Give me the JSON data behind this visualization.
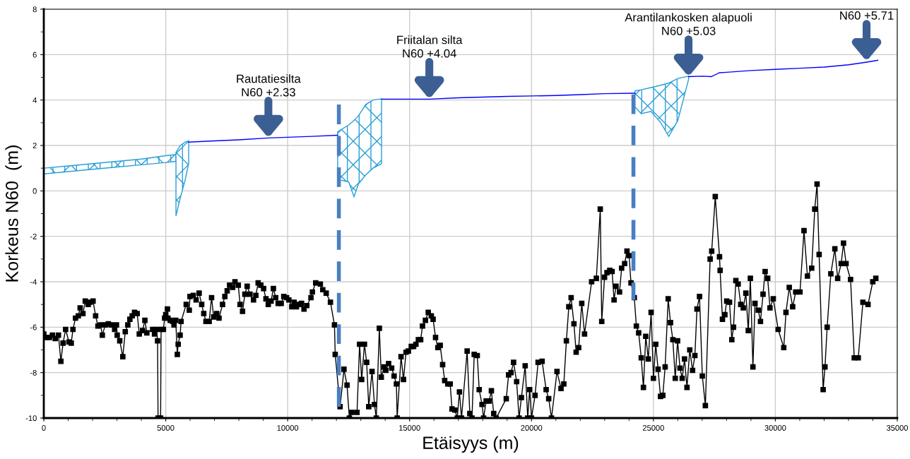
{
  "chart_data": {
    "type": "line",
    "xlabel": "Etäisyys (m)",
    "ylabel": "Korkeus N60  (m)",
    "xlim": [
      0,
      35000
    ],
    "xticks": [
      0,
      5000,
      10000,
      15000,
      20000,
      25000,
      30000,
      35000
    ],
    "ylim": [
      -10,
      8
    ],
    "yticks": [
      -10,
      -8,
      -6,
      -4,
      -2,
      0,
      2,
      4,
      6,
      8
    ],
    "grid": true,
    "series": [
      {
        "color": "#000000",
        "marker": "square",
        "line_style": "solid",
        "x": [
          0,
          115,
          230,
          355,
          470,
          600,
          700,
          790,
          895,
          1030,
          1125,
          1195,
          1300,
          1415,
          1490,
          1605,
          1700,
          1820,
          1895,
          2020,
          2125,
          2220,
          2330,
          2400,
          2520,
          2645,
          2760,
          2905,
          2980,
          3010,
          3115,
          3240,
          3340,
          3445,
          3530,
          3625,
          3720,
          3830,
          3915,
          4050,
          4145,
          4225,
          4465,
          4540,
          4625,
          4665,
          4685,
          4790,
          4810,
          4905,
          4955,
          5000,
          5070,
          5090,
          5185,
          5290,
          5340,
          5410,
          5475,
          5510,
          5590,
          5630,
          5840,
          5965,
          5995,
          6130,
          6245,
          6370,
          6475,
          6560,
          6650,
          6780,
          6880,
          6965,
          7090,
          7185,
          7330,
          7425,
          7520,
          7620,
          7745,
          7840,
          7975,
          8050,
          8150,
          8245,
          8340,
          8455,
          8600,
          8695,
          8790,
          8900,
          9015,
          9110,
          9205,
          9320,
          9415,
          9510,
          9610,
          9735,
          9840,
          9955,
          10050,
          10170,
          10265,
          10360,
          10475,
          10570,
          10670,
          10785,
          10955,
          11015,
          11150,
          11340,
          11440,
          11580,
          11755,
          11920,
          11950,
          12150,
          12310,
          12435,
          12530,
          12630,
          12845,
          12950,
          13035,
          13150,
          13240,
          13325,
          13460,
          13560,
          13635,
          13760,
          13840,
          13955,
          14025,
          14140,
          14265,
          14365,
          14460,
          14490,
          14650,
          14750,
          14855,
          14950,
          15070,
          15165,
          15260,
          15360,
          15455,
          15530,
          15650,
          15765,
          15890,
          15965,
          16065,
          16160,
          16255,
          16355,
          16440,
          16565,
          16665,
          16740,
          16860,
          16955,
          17045,
          17130,
          17360,
          17470,
          17560,
          17650,
          17775,
          17855,
          17970,
          18035,
          18140,
          18260,
          18355,
          18450,
          18550,
          18965,
          19060,
          19160,
          19265,
          19390,
          19490,
          19585,
          19740,
          19845,
          19925,
          20000,
          20145,
          20270,
          20435,
          20600,
          20705,
          20820,
          21045,
          21210,
          21325,
          21430,
          21530,
          21625,
          21740,
          21830,
          21935,
          22060,
          22175,
          22465,
          22660,
          22820,
          22880,
          22995,
          23095,
          23210,
          23305,
          23385,
          23465,
          23610,
          23695,
          23820,
          23915,
          24000,
          24080,
          24215,
          24300,
          24395,
          24500,
          24590,
          24685,
          24790,
          24905,
          25000,
          25095,
          25190,
          25290,
          25385,
          25480,
          25605,
          25700,
          25795,
          25895,
          25990,
          26090,
          26180,
          26275,
          26375,
          26490,
          26605,
          26700,
          26785,
          26890,
          27005,
          27130,
          27325,
          27390,
          27535,
          27710,
          27735,
          27830,
          27930,
          28005,
          28120,
          28215,
          28285,
          28380,
          28475,
          28580,
          28685,
          28790,
          28890,
          28975,
          29080,
          29165,
          29300,
          29390,
          29495,
          29580,
          29685,
          29780,
          29915,
          30115,
          30345,
          30435,
          30570,
          30710,
          30835,
          31010,
          31175,
          31315,
          31490,
          31615,
          31710,
          31795,
          31960,
          32035,
          32125,
          32275,
          32440,
          32555,
          32700,
          32795,
          32900,
          33085,
          33235,
          33400,
          33590,
          33800,
          33995,
          34120
        ],
        "values": [
          -6.3,
          -6.45,
          -6.45,
          -6.35,
          -6.5,
          -6.35,
          -7.5,
          -6.7,
          -6.1,
          -6.65,
          -6.7,
          -6.1,
          -5.6,
          -5.5,
          -5.15,
          -5.4,
          -4.85,
          -5.0,
          -4.9,
          -4.85,
          -5.5,
          -5.95,
          -5.9,
          -6.35,
          -5.9,
          -5.85,
          -5.9,
          -6.1,
          -5.9,
          -6.35,
          -6.6,
          -7.3,
          -6.2,
          -5.9,
          -5.65,
          -5.5,
          -5.35,
          -5.4,
          -6.3,
          -6.15,
          -5.7,
          -6.25,
          -6.1,
          -6.3,
          -6.1,
          -6.6,
          -10,
          -10,
          -6.1,
          -6.1,
          -5.6,
          -5.45,
          -5.2,
          -5.6,
          -5.7,
          -5.75,
          -5.9,
          -5.7,
          -7.2,
          -6.75,
          -6.35,
          -5.75,
          -5.0,
          -5.25,
          -4.65,
          -4.6,
          -4.8,
          -4.5,
          -5.0,
          -5.4,
          -5.75,
          -5.75,
          -4.7,
          -5.55,
          -5.4,
          -5.6,
          -5.0,
          -4.65,
          -4.4,
          -4.15,
          -4.25,
          -4.0,
          -4.15,
          -5.0,
          -5.3,
          -4.55,
          -4.2,
          -4.55,
          -4.8,
          -4.6,
          -4.05,
          -4.15,
          -4.3,
          -4.75,
          -5.0,
          -4.85,
          -4.3,
          -4.7,
          -4.95,
          -4.95,
          -4.65,
          -4.7,
          -4.8,
          -5.1,
          -4.9,
          -5.1,
          -5.0,
          -4.95,
          -5.2,
          -5.05,
          -4.7,
          -4.45,
          -4.05,
          -4.1,
          -4.35,
          -4.5,
          -4.9,
          -5.9,
          -7.2,
          -9.5,
          -7.85,
          -8.55,
          -10,
          -9.75,
          -9.75,
          -6.75,
          -8.3,
          -6.75,
          -7.55,
          -9.5,
          -7.95,
          -9.4,
          -10,
          -6.05,
          -8.2,
          -7.75,
          -7.9,
          -7.6,
          -7.8,
          -8.15,
          -8.5,
          -10,
          -7.3,
          -8.3,
          -7.1,
          -7.05,
          -6.85,
          -6.85,
          -6.75,
          -6.55,
          -6.55,
          -5.95,
          -5.7,
          -5.35,
          -5.5,
          -5.65,
          -6.45,
          -6.9,
          -6.8,
          -7.65,
          -8.35,
          -8.5,
          -8.5,
          -9.6,
          -9.65,
          -10,
          -8.85,
          -10,
          -7.05,
          -9.8,
          -10,
          -7.2,
          -7.25,
          -8.75,
          -9.4,
          -10,
          -9.25,
          -9.25,
          -8.8,
          -9.8,
          -10,
          -9.15,
          -8.1,
          -8.0,
          -7.55,
          -8.4,
          -10,
          -9.1,
          -7.7,
          -10,
          -8.75,
          -10,
          -9.0,
          -7.55,
          -7.5,
          -8.75,
          -9.15,
          -10,
          -7.95,
          -8.7,
          -8.5,
          -6.6,
          -5.1,
          -4.7,
          -5.85,
          -7.1,
          -6.9,
          -4.95,
          -6.3,
          -4.0,
          -3.85,
          -0.8,
          -5.75,
          -3.8,
          -3.6,
          -3.5,
          -3.55,
          -4.8,
          -4.2,
          -4.45,
          -3.4,
          -3.2,
          -2.65,
          -2.85,
          -4.05,
          -4.7,
          -5.95,
          -6.25,
          -7.35,
          -8.65,
          -6.4,
          -7.4,
          -5.35,
          -8.25,
          -6.75,
          -7.85,
          -9.05,
          -9.0,
          -7.75,
          -4.75,
          -5.8,
          -6.55,
          -8.25,
          -6.6,
          -7.8,
          -8.25,
          -7.4,
          -8.65,
          -7.0,
          -7.9,
          -7.25,
          -5.2,
          -4.65,
          -8.15,
          -9.45,
          -3.0,
          -2.65,
          -0.25,
          -2.9,
          -3.5,
          -5.65,
          -5.45,
          -4.85,
          -4.9,
          -6.55,
          -6.0,
          -3.95,
          -4.1,
          -5.0,
          -5.15,
          -4.5,
          -6.15,
          -3.85,
          -7.75,
          -4.95,
          -5.25,
          -5.75,
          -4.55,
          -3.55,
          -3.85,
          -5.15,
          -4.75,
          -6.1,
          -6.9,
          -5.35,
          -4.25,
          -5.1,
          -4.45,
          -4.45,
          -1.75,
          -3.75,
          -3.4,
          -0.8,
          0.3,
          -2.8,
          -8.75,
          -7.75,
          -6.0,
          -3.65,
          -2.55,
          -3.85,
          -3.2,
          -2.3,
          -3.2,
          -3.9,
          -7.35,
          -7.35,
          -4.9,
          -5.0,
          -4.0,
          -3.85
        ]
      },
      {
        "color": "#0000ff",
        "marker": "none",
        "line_style": "solid",
        "x": [
          5940,
          7000,
          8000,
          9210,
          10000,
          11000,
          12050,
          13000,
          13850,
          15810,
          17000,
          18000,
          19000,
          20000,
          21000,
          22000,
          23000,
          24240,
          25300,
          26440,
          27000,
          27370,
          27700,
          28000,
          29000,
          30000,
          31000,
          32000,
          33000,
          33700,
          34200
        ],
        "values": [
          2.15,
          2.2,
          2.25,
          2.33,
          2.36,
          2.4,
          2.45,
          null,
          4.04,
          4.04,
          4.1,
          4.13,
          4.16,
          4.18,
          4.2,
          4.24,
          4.28,
          4.3,
          null,
          5.03,
          5.05,
          5.03,
          5.2,
          5.22,
          5.3,
          5.35,
          5.4,
          5.45,
          5.55,
          5.66,
          5.75
        ]
      },
      {
        "type": "area",
        "color": "#2a9fd6",
        "x": [
          0,
          1000,
          2000,
          3000,
          4000,
          5000,
          5420,
          5420,
          5000,
          4000,
          3000,
          2000,
          1000,
          0
        ],
        "values": [
          1.0,
          1.1,
          1.2,
          1.3,
          1.4,
          1.55,
          1.6,
          1.3,
          1.25,
          1.15,
          1.05,
          0.95,
          0.85,
          0.75
        ]
      },
      {
        "type": "area",
        "color": "#2a9fd6",
        "x": [
          5420,
          5600,
          5800,
          5940,
          5940,
          5800,
          5600,
          5420
        ],
        "values": [
          1.7,
          2.0,
          2.15,
          2.2,
          1.2,
          0.5,
          -0.3,
          -1.1
        ]
      },
      {
        "type": "area",
        "color": "#2a9fd6",
        "x": [
          12050,
          12500,
          12720,
          12900,
          13200,
          13500,
          13850,
          13850,
          13500,
          13200,
          12900,
          12720,
          12500,
          12050
        ],
        "values": [
          2.6,
          2.9,
          3.1,
          3.3,
          3.8,
          4.0,
          4.05,
          1.2,
          1.0,
          0.7,
          0.3,
          -0.25,
          0.4,
          0.5
        ]
      },
      {
        "type": "area",
        "color": "#2a9fd6",
        "x": [
          24240,
          24500,
          24900,
          25300,
          25630,
          26000,
          26440,
          26440,
          26000,
          25630,
          25300,
          24900,
          24500,
          24240
        ],
        "values": [
          4.4,
          4.45,
          4.55,
          4.65,
          4.75,
          4.95,
          5.05,
          4.9,
          3.1,
          2.4,
          3.0,
          3.5,
          3.4,
          3.7
        ]
      },
      {
        "type": "line",
        "color": "#4a7fc1",
        "marker": "none",
        "line_style": "dashed",
        "x": [
          12100,
          12100
        ],
        "values": [
          3.8,
          -10
        ]
      },
      {
        "type": "line",
        "color": "#4a7fc1",
        "marker": "none",
        "line_style": "dashed",
        "x": [
          24180,
          24180
        ],
        "values": [
          4.25,
          -4.8
        ]
      }
    ],
    "annotations": [
      {
        "text": "Rautatiesilta\nN60 +2.33",
        "x": 9210,
        "y": 2.33
      },
      {
        "text": "Friitalan silta\nN60 +4.04",
        "x": 15810,
        "y": 4.04
      },
      {
        "text": "Arantilankosken alapuoli\nN60 +5.03",
        "x": 26440,
        "y": 5.03
      },
      {
        "text": "N60 +5.71",
        "x": 33740,
        "y": 5.71
      }
    ]
  }
}
